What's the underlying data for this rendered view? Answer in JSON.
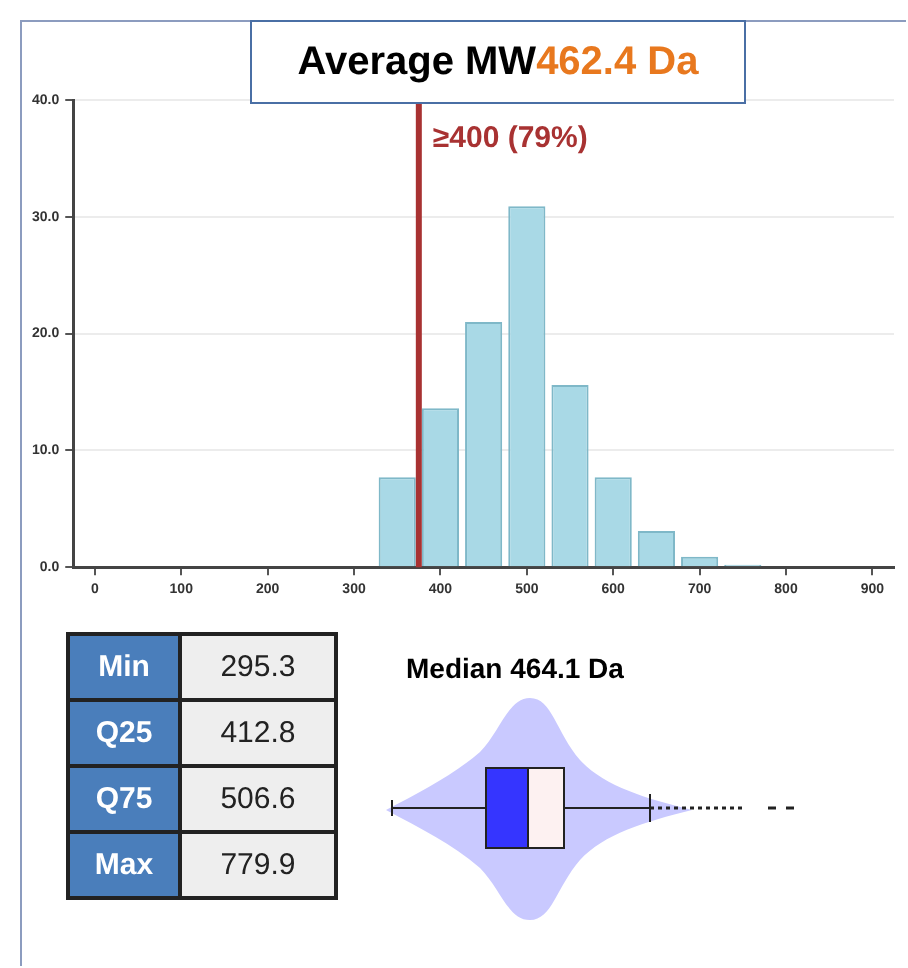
{
  "chart_data": [
    {
      "type": "histogram",
      "title": "Average MW462.4 Da",
      "bins": [
        325,
        375,
        425,
        475,
        525,
        575,
        625,
        675,
        725,
        775
      ],
      "values": [
        7.7,
        13.6,
        21.0,
        30.9,
        15.6,
        7.7,
        3.1,
        0.9,
        0.2
      ],
      "color": "#a9d9e6",
      "xlim": [
        -25,
        925
      ],
      "xticks": [
        0,
        100,
        200,
        300,
        400,
        500,
        600,
        700,
        800,
        900
      ],
      "ylim": [
        0,
        40
      ],
      "yticks": [
        {
          "value": 0,
          "label": "0.0"
        },
        {
          "value": 10,
          "label": "10.0"
        },
        {
          "value": 20,
          "label": "20.0"
        },
        {
          "value": 30,
          "label": "30.0"
        },
        {
          "value": 40,
          "label": "40.0"
        }
      ],
      "grid": "y",
      "legend": false,
      "ref_lines": [
        {
          "axis": "x",
          "value": 375,
          "label": "≥400 (79%)",
          "color": "#a83232"
        }
      ]
    },
    {
      "type": "other",
      "title": "Median 464.1 Da",
      "annotations": [
        "Min",
        "295.3",
        "Q25",
        "412.8",
        "Q75",
        "506.6",
        "Max",
        "779.9"
      ]
    }
  ]
}
